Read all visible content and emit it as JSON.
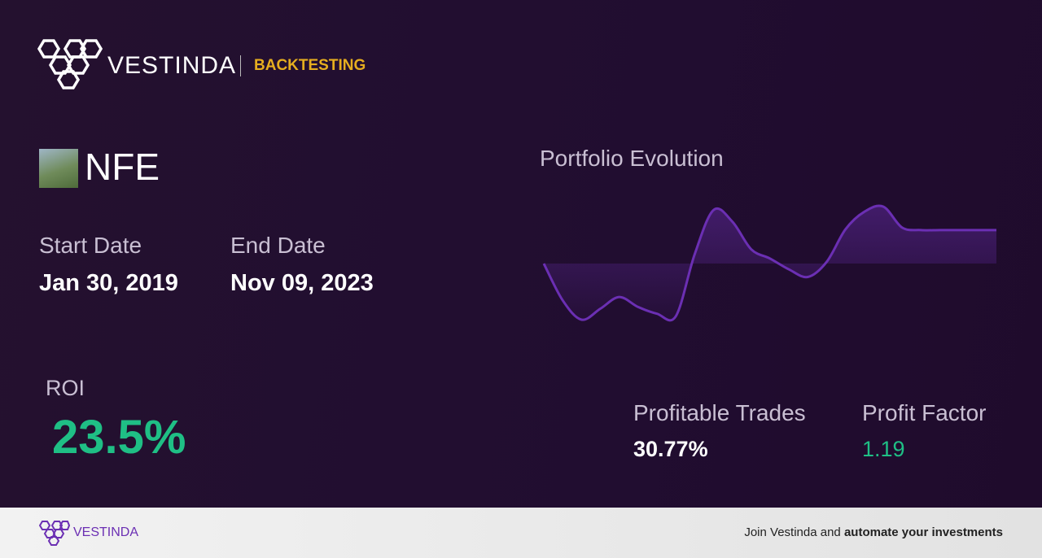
{
  "header": {
    "brand": "VESTINDA",
    "section": "BACKTESTING"
  },
  "asset": {
    "ticker": "NFE"
  },
  "dates": {
    "start_label": "Start Date",
    "start_value": "Jan 30, 2019",
    "end_label": "End Date",
    "end_value": "Nov 09, 2023"
  },
  "roi": {
    "label": "ROI",
    "value": "23.5%"
  },
  "stats": {
    "profitable_trades_label": "Profitable Trades",
    "profitable_trades_value": "30.77%",
    "profit_factor_label": "Profit Factor",
    "profit_factor_value": "1.19"
  },
  "chart_data": {
    "type": "line",
    "title": "Portfolio Evolution",
    "color": "#6b2fb3",
    "values": [
      100,
      74.2,
      60.6,
      68.3,
      76.5,
      69.5,
      64.8,
      63.0,
      106.5,
      137.6,
      129.4,
      110.0,
      103.5,
      95.9,
      90.6,
      101.2,
      124.1,
      136.4,
      140.0,
      125.3,
      123.5,
      123.5,
      123.5,
      123.5,
      123.5
    ]
  },
  "footer": {
    "brand": "VESTINDA",
    "text": "Join Vestinda and",
    "emphasis": "automate your investments"
  }
}
